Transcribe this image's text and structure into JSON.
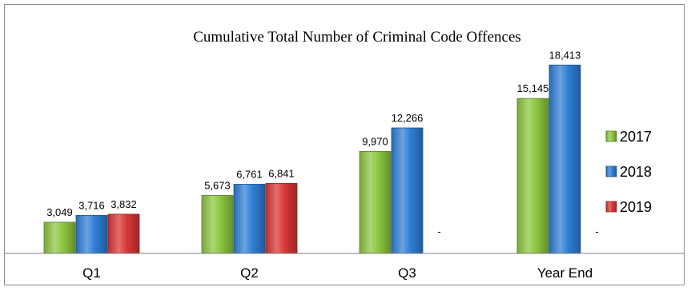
{
  "chart_data": {
    "type": "bar",
    "title": "Cumulative Total Number of Criminal Code Offences",
    "categories": [
      "Q1",
      "Q2",
      "Q3",
      "Year End"
    ],
    "series": [
      {
        "name": "2017",
        "values": [
          3049,
          5673,
          9970,
          15145
        ],
        "color": "#8dc63f"
      },
      {
        "name": "2018",
        "values": [
          3716,
          6761,
          12266,
          18413
        ],
        "color": "#2e7fd6"
      },
      {
        "name": "2019",
        "values": [
          3832,
          6841,
          null,
          null
        ],
        "color": "#d93636"
      }
    ],
    "data_labels": [
      [
        "3,049",
        "5,673",
        "9,970",
        "15,145"
      ],
      [
        "3,716",
        "6,761",
        "12,266",
        "18,413"
      ],
      [
        "3,832",
        "6,841",
        "-",
        "-"
      ]
    ],
    "xlabel": "",
    "ylabel": "",
    "ylim": [
      0,
      20000
    ],
    "grid": false,
    "legend": "right"
  }
}
